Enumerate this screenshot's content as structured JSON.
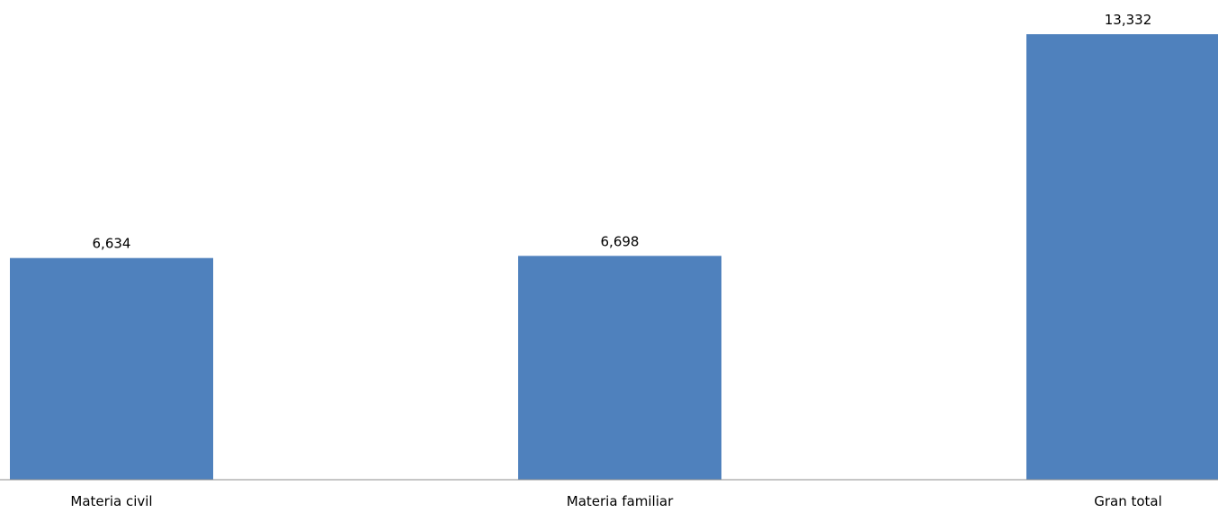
{
  "chart_data": {
    "type": "bar",
    "categories": [
      "Materia civil",
      "Materia familiar",
      "Gran total"
    ],
    "values": [
      6634,
      6698,
      13332
    ],
    "value_labels": [
      "6,634",
      "6,698",
      "13,332"
    ],
    "title": "",
    "xlabel": "",
    "ylabel": "",
    "ylim": [
      0,
      13332
    ],
    "grid": false,
    "legend": "none",
    "bar_color": "#4f81bd",
    "axis_color": "#8c8c8c"
  }
}
